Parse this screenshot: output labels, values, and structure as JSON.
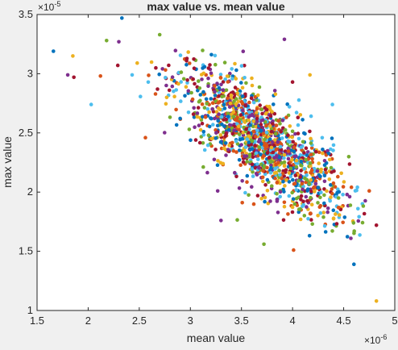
{
  "chart_data": {
    "type": "scatter",
    "title": "max value vs. mean value",
    "xlabel": "mean value",
    "ylabel": "max value",
    "x_exponent": "×10",
    "x_exponent_power": "-6",
    "y_exponent": "×10",
    "y_exponent_power": "-5",
    "xlim": [
      1.5,
      5
    ],
    "ylim": [
      1,
      3.5
    ],
    "xticks": [
      1.5,
      2,
      2.5,
      3,
      3.5,
      4,
      4.5,
      5
    ],
    "yticks": [
      1,
      1.5,
      2,
      2.5,
      3,
      3.5
    ],
    "xtick_labels": [
      "1.5",
      "2",
      "2.5",
      "3",
      "3.5",
      "4",
      "4.5",
      "5"
    ],
    "ytick_labels": [
      "1",
      "1.5",
      "2",
      "2.5",
      "3",
      "3.5"
    ],
    "grid": false,
    "background": "#ffffff",
    "series_colors": [
      "#0072bd",
      "#d95319",
      "#edb120",
      "#7e2f8e",
      "#77ac30",
      "#4dbeee",
      "#a2142f"
    ],
    "points": [
      [
        1.66,
        3.19
      ],
      [
        1.8,
        2.99
      ],
      [
        1.86,
        2.97
      ],
      [
        1.85,
        3.15
      ],
      [
        2.03,
        2.74
      ],
      [
        2.12,
        2.98
      ],
      [
        2.18,
        3.28
      ],
      [
        2.33,
        3.47
      ],
      [
        2.3,
        3.27
      ],
      [
        2.29,
        3.07
      ],
      [
        2.48,
        3.09
      ],
      [
        2.43,
        2.99
      ],
      [
        2.56,
        2.46
      ],
      [
        2.7,
        3.33
      ],
      [
        3.45,
        3.03
      ],
      [
        3.92,
        3.29
      ],
      [
        4.0,
        2.93
      ],
      [
        4.17,
        2.99
      ],
      [
        4.39,
        2.74
      ],
      [
        4.01,
        1.51
      ],
      [
        3.72,
        1.56
      ],
      [
        4.6,
        1.39
      ],
      [
        4.57,
        1.61
      ],
      [
        4.82,
        1.72
      ],
      [
        4.82,
        1.08
      ],
      [
        4.64,
        1.86
      ],
      [
        4.75,
        2.01
      ],
      [
        4.45,
        1.95
      ],
      [
        3.13,
        2.51
      ],
      [
        3.3,
        1.76
      ]
    ],
    "cloud_note_count": 1400
  }
}
